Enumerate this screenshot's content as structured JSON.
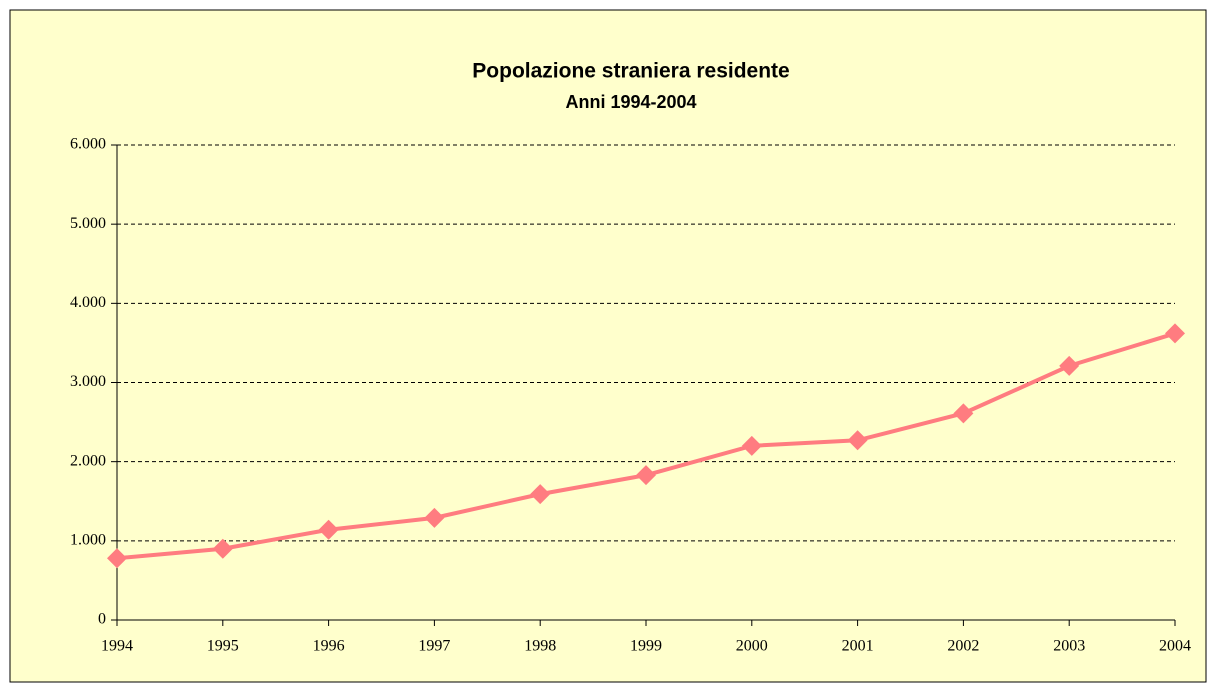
{
  "chart_data": {
    "type": "line",
    "title": "Popolazione straniera residente",
    "subtitle": "Anni 1994-2004",
    "categories": [
      "1994",
      "1995",
      "1996",
      "1997",
      "1998",
      "1999",
      "2000",
      "2001",
      "2002",
      "2003",
      "2004"
    ],
    "values": [
      780,
      900,
      1140,
      1290,
      1590,
      1830,
      2200,
      2270,
      2610,
      3210,
      3620
    ],
    "color": "#ff7c80",
    "ylim": [
      0,
      6000
    ],
    "yticks": [
      0,
      {
        "value": 1000,
        "label": "1.000"
      },
      {
        "value": 2000,
        "label": "2.000"
      },
      {
        "value": 3000,
        "label": "3.000"
      },
      {
        "value": 4000,
        "label": "4.000"
      },
      {
        "value": 5000,
        "label": "5.000"
      },
      {
        "value": 6000,
        "label": "6.000"
      }
    ],
    "grid": true
  }
}
